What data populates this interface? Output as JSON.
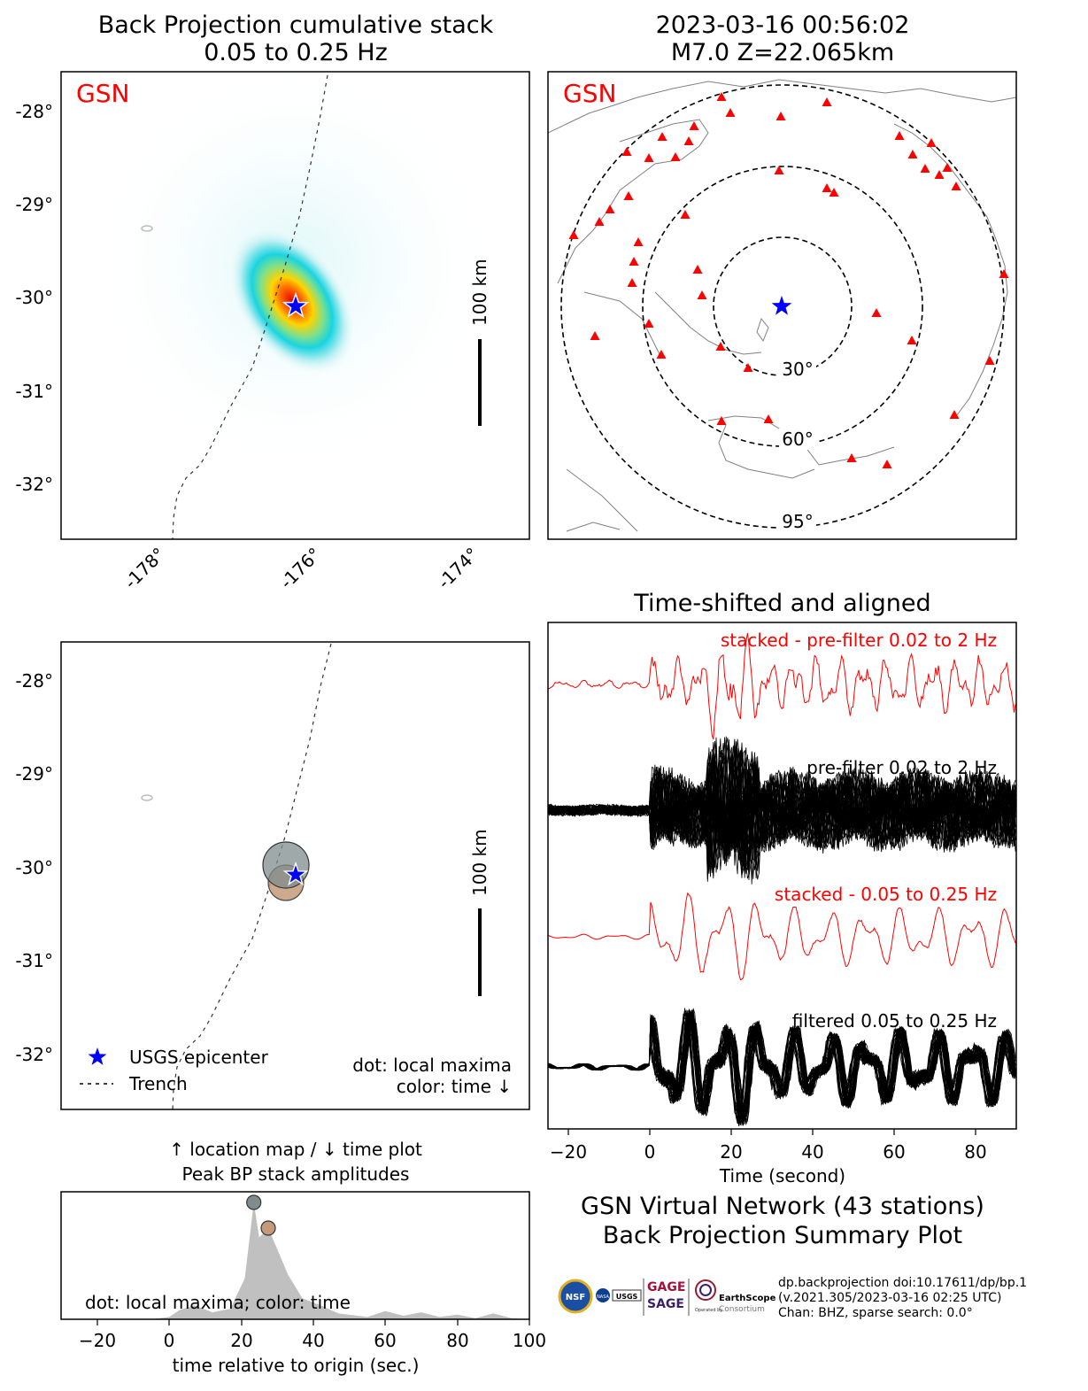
{
  "colors": {
    "station": "#ff0000",
    "epicenter": "#0000ff",
    "trace": "#000000",
    "stack": "#ff0000",
    "peak_early": "#7f8c8d",
    "peak_late": "#c49a7a",
    "fill": "#c0c0c0"
  },
  "panels": {
    "bp_map": {
      "title_line1": "Back Projection cumulative stack",
      "title_line2": "0.05 to 0.25 Hz",
      "network": "GSN",
      "scale_label": "100 km",
      "yticks": [
        "-28°",
        "-29°",
        "-30°",
        "-31°",
        "-32°"
      ],
      "xticks": [
        "-178°",
        "-176°",
        "-174°"
      ]
    },
    "station_map": {
      "title_line1": "2023-03-16 00:56:02",
      "title_line2": "M7.0 Z=22.065km",
      "network": "GSN",
      "ring_labels": [
        "30°",
        "60°",
        "95°"
      ]
    },
    "location_map": {
      "scale_label": "100 km",
      "yticks": [
        "-28°",
        "-29°",
        "-30°",
        "-31°",
        "-32°"
      ],
      "legend_epicenter": "USGS epicenter",
      "legend_trench": "Trench",
      "note_line1": "dot: local maxima",
      "note_line2": "color: time ↓"
    },
    "waveforms": {
      "title": "Time-shifted and aligned",
      "label_stack_broad": "stacked - pre-filter 0.02 to 2 Hz",
      "label_traces_broad": "pre-filter 0.02 to 2 Hz",
      "label_stack_narrow": "stacked - 0.05 to 0.25 Hz",
      "label_traces_narrow": "filtered 0.05 to 0.25 Hz",
      "xticks": [
        "−20",
        "0",
        "20",
        "40",
        "60",
        "80"
      ],
      "xlabel": "Time (second)"
    },
    "peak_plot": {
      "title_line1": "↑ location map / ↓ time plot",
      "title_line2": "Peak BP stack amplitudes",
      "note": "dot: local maxima; color: time",
      "xticks": [
        "−20",
        "0",
        "20",
        "40",
        "60",
        "80",
        "100"
      ],
      "xlabel": "time relative to origin (sec.)"
    },
    "summary": {
      "line1": "GSN Virtual Network (43 stations)",
      "line2": "Back Projection Summary Plot",
      "meta1": "dp.backprojection doi:10.17611/dp/bp.1",
      "meta2": "(v.2021.305/2023-03-16 02:25 UTC)",
      "meta3": "Chan: BHZ, sparse search: 0.0°",
      "logo_gage": "GAGE",
      "logo_sage": "SAGE",
      "logo_earthscope": "EarthScope",
      "logo_consortium": "Consortium",
      "logo_usgs": "USGS",
      "logo_nasa": "NASA",
      "logo_nsf": "NSF",
      "logo_operated": "Operated by"
    }
  },
  "chart_data": [
    {
      "type": "heatmap",
      "title": "Back Projection cumulative stack 0.05 to 0.25 Hz",
      "peak": {
        "lon": -176.2,
        "lat": -30.1
      },
      "epicenter": {
        "lon": -176.2,
        "lat": -30.1
      },
      "xlim": [
        -179.1,
        -173.1
      ],
      "ylim": [
        -32.6,
        -27.6
      ]
    },
    {
      "type": "scatter",
      "title": "Peak BP stack amplitudes",
      "x": [
        23.5,
        27.5
      ],
      "y": [
        1.0,
        0.78
      ],
      "xlim": [
        -30,
        100
      ],
      "envelope": {
        "x": [
          -30,
          -5,
          0,
          3,
          7,
          12,
          17,
          21,
          23.5,
          25,
          27.5,
          30,
          33,
          37,
          42,
          47,
          55,
          60,
          65,
          70,
          75,
          80,
          85,
          90,
          95,
          100
        ],
        "y": [
          0,
          0,
          0.02,
          0.08,
          0.12,
          0.06,
          0.09,
          0.35,
          1.0,
          0.7,
          0.78,
          0.6,
          0.38,
          0.18,
          0.12,
          0.05,
          0.02,
          0.07,
          0.03,
          0.06,
          0.02,
          0.04,
          0.01,
          0.05,
          0.01,
          0
        ]
      }
    },
    {
      "type": "line",
      "title": "Time-shifted and aligned",
      "xlim": [
        -25,
        90
      ],
      "series": [
        {
          "name": "stacked - pre-filter 0.02 to 2 Hz"
        },
        {
          "name": "pre-filter 0.02 to 2 Hz"
        },
        {
          "name": "stacked - 0.05 to 0.25 Hz"
        },
        {
          "name": "filtered 0.05 to 0.25 Hz"
        }
      ]
    }
  ]
}
